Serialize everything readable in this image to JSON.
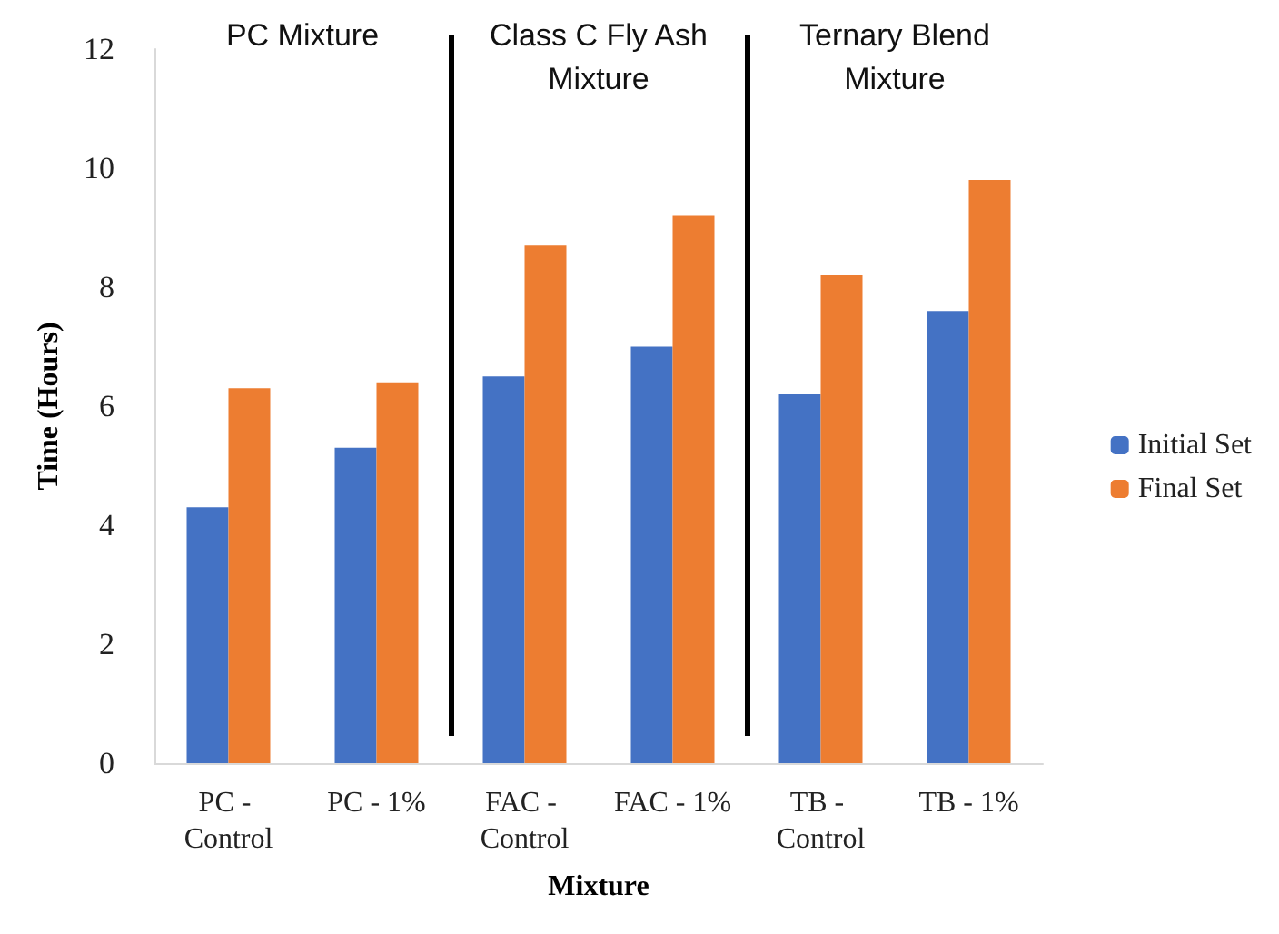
{
  "chart_data": {
    "type": "bar",
    "xlabel": "Mixture",
    "ylabel": "Time (Hours)",
    "categories": [
      "PC - Control",
      "PC - 1%",
      "FAC - Control",
      "FAC - 1%",
      "TB - Control",
      "TB - 1%"
    ],
    "series": [
      {
        "name": "Initial Set",
        "color": "#4472c4",
        "values": [
          4.3,
          5.3,
          6.5,
          7.0,
          6.2,
          7.6
        ]
      },
      {
        "name": "Final Set",
        "color": "#ed7d31",
        "values": [
          6.3,
          6.4,
          8.7,
          9.2,
          8.2,
          9.8
        ]
      }
    ],
    "ylim": [
      0,
      12
    ],
    "yticks": [
      0,
      2,
      4,
      6,
      8,
      10,
      12
    ],
    "grid": false,
    "legend": "right",
    "annotations": [
      "PC Mixture",
      "Class C Fly Ash Mixture",
      "Ternary Blend Mixture"
    ]
  }
}
